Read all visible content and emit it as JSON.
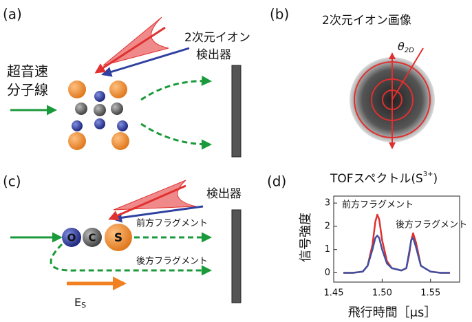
{
  "panel_a": {
    "label": "(a)",
    "beam_line1": "超音速",
    "beam_line2": "分子線",
    "detector_line1": "2次元イオン",
    "detector_line2": "検出器"
  },
  "panel_b": {
    "label": "(b)",
    "title": "2次元イオン画像",
    "angle_symbol": "θ",
    "angle_subscript": "2D"
  },
  "panel_c": {
    "label": "(c)",
    "atoms": [
      "O",
      "C",
      "S"
    ],
    "forward": "前方フラグメント",
    "backward": "後方フラグメント",
    "detector": "検出器",
    "field_symbol": "E",
    "field_subscript": "S"
  },
  "chart_data": {
    "type": "line",
    "label": "(d)",
    "title": "TOFスペクトル(S",
    "title_superscript": "3+",
    "title_close": ")",
    "x_label": "飛行時間［μs］",
    "y_label": "信号強度",
    "annotations": [
      "前方フラグメント",
      "後方フラグメント"
    ],
    "x": [
      1.46,
      1.47,
      1.48,
      1.485,
      1.49,
      1.493,
      1.495,
      1.497,
      1.5,
      1.505,
      1.51,
      1.52,
      1.525,
      1.528,
      1.53,
      1.532,
      1.535,
      1.54,
      1.55,
      1.56,
      1.57
    ],
    "series": [
      {
        "color": "#e03030",
        "values": [
          0,
          0,
          0.05,
          0.3,
          1.2,
          2.2,
          2.5,
          2.3,
          1.4,
          0.5,
          0.2,
          0.1,
          0.2,
          0.8,
          1.4,
          1.7,
          1.3,
          0.3,
          0.05,
          0,
          0
        ]
      },
      {
        "color": "#4050a0",
        "values": [
          0,
          0,
          0.05,
          0.3,
          1.0,
          1.5,
          1.6,
          1.5,
          1.0,
          0.4,
          0.2,
          0.1,
          0.2,
          0.9,
          1.4,
          1.5,
          1.1,
          0.3,
          0.05,
          0,
          0
        ]
      }
    ],
    "xlim": [
      1.45,
      1.58
    ],
    "ylim": [
      -0.4,
      3.3
    ],
    "xticks": [
      1.45,
      {
        "value": 1.5,
        "label": "1.50"
      },
      1.55
    ],
    "yticks": [
      0,
      1,
      2,
      3
    ]
  }
}
